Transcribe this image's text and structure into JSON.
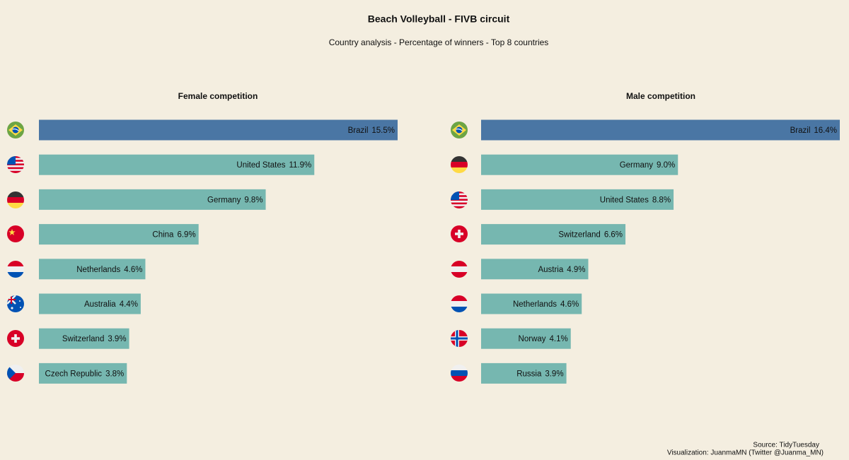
{
  "header": {
    "title": "Beach Volleyball - FIVB circuit",
    "subtitle": "Country analysis - Percentage of winners - Top 8 countries"
  },
  "chart_data": [
    {
      "type": "bar",
      "orientation": "horizontal",
      "title": "Female competition",
      "categories": [
        "Brazil",
        "United States",
        "Germany",
        "China",
        "Netherlands",
        "Australia",
        "Switzerland",
        "Czech Republic"
      ],
      "values": [
        15.5,
        11.9,
        9.8,
        6.9,
        4.6,
        4.4,
        3.9,
        3.8
      ],
      "value_labels": [
        "15.5%",
        "11.9%",
        "9.8%",
        "6.9%",
        "4.6%",
        "4.4%",
        "3.9%",
        "3.8%"
      ],
      "colors": [
        "#4a76a4",
        "#76b7b0",
        "#76b7b0",
        "#76b7b0",
        "#76b7b0",
        "#76b7b0",
        "#76b7b0",
        "#76b7b0"
      ]
    },
    {
      "type": "bar",
      "orientation": "horizontal",
      "title": "Male competition",
      "categories": [
        "Brazil",
        "Germany",
        "United States",
        "Switzerland",
        "Austria",
        "Netherlands",
        "Norway",
        "Russia"
      ],
      "values": [
        16.4,
        9.0,
        8.8,
        6.6,
        4.9,
        4.6,
        4.1,
        3.9
      ],
      "value_labels": [
        "16.4%",
        "9.0%",
        "8.8%",
        "6.6%",
        "4.9%",
        "4.6%",
        "4.1%",
        "3.9%"
      ],
      "colors": [
        "#4a76a4",
        "#76b7b0",
        "#76b7b0",
        "#76b7b0",
        "#76b7b0",
        "#76b7b0",
        "#76b7b0",
        "#76b7b0"
      ]
    }
  ],
  "caption": [
    "Source: TidyTuesday",
    "Visualization: JuanmaMN (Twitter @Juanma_MN)"
  ]
}
